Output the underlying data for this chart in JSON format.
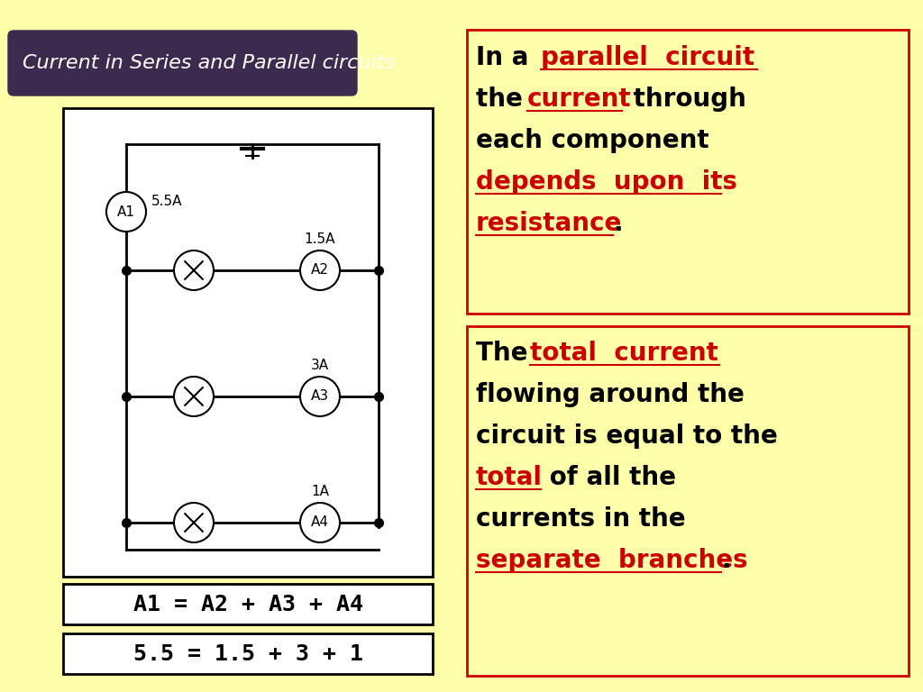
{
  "bg_color": "#FFFFAA",
  "title_text": "Current in Series and Parallel circuits",
  "title_bg": "#3d2b4f",
  "title_fg": "#ffffff",
  "eq1_text": "A1 = A2 + A3 + A4",
  "eq2_text": "5.5 = 1.5 + 3 + 1",
  "red_color": "#cc0000",
  "font_size_main": 20,
  "font_size_eq": 18,
  "font_size_title": 16,
  "font_size_circuit": 11,
  "font_size_current": 11
}
